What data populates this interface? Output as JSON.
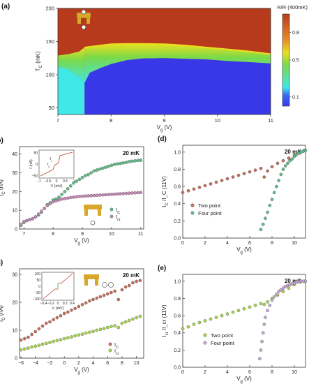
{
  "figure": {
    "panels": [
      {
        "id": "a",
        "label": "(a)",
        "type": "heatmap",
        "xlabel": "V_g (V)",
        "ylabel": "T_C (mK)",
        "x_ticks": [
          7,
          8,
          9,
          10,
          11
        ],
        "y_ticks": [
          50,
          100,
          150,
          200
        ],
        "xlim": [
          7,
          11
        ],
        "ylim": [
          40,
          200
        ],
        "colorbar": {
          "title": "R/R (400mK)",
          "ticks": [
            0.1,
            0.5,
            0.8
          ],
          "ticklabels": [
            "0.1",
            "0.5",
            "0.8"
          ],
          "range": [
            0,
            1
          ]
        },
        "colors": {
          "low": "#3838e8",
          "cyan": "#40e8e8",
          "mid": "#7ad94a",
          "yellow": "#e8e020",
          "high": "#b83a1c"
        },
        "boundary": {
          "x": [
            7.5,
            7.6,
            7.8,
            8.0,
            8.3,
            8.6,
            9.0,
            9.4,
            9.8,
            10.2,
            10.6,
            11.0
          ],
          "t_upper": [
            141,
            142,
            144,
            146,
            146.5,
            146.5,
            146,
            144,
            141,
            138,
            135,
            131
          ],
          "t_lower": [
            87,
            103,
            110,
            116,
            122,
            124.5,
            125,
            124,
            123,
            120.5,
            119,
            117
          ]
        },
        "left_region": {
          "x": [
            7.0,
            7.2,
            7.4,
            7.5
          ],
          "t_upper": [
            129,
            131,
            135,
            141
          ],
          "t_lower": [
            112,
            108,
            95,
            87
          ]
        }
      },
      {
        "id": "b",
        "label": "(b)",
        "type": "scatter",
        "annotation": "20 mK",
        "xlabel": "V_g (V)",
        "ylabel": "I_C (nA)",
        "x_ticks": [
          7,
          8,
          9,
          10,
          11
        ],
        "y_ticks": [
          0,
          10,
          20,
          30,
          40
        ],
        "xlim": [
          6.85,
          11.1
        ],
        "ylim": [
          0,
          44
        ],
        "series": [
          {
            "name": "I_C",
            "color": "#5fbf8a",
            "x": [
              6.9,
              7.0,
              7.1,
              7.2,
              7.3,
              7.4,
              7.5,
              7.6,
              7.7,
              7.8,
              7.9,
              8.0,
              8.1,
              8.2,
              8.3,
              8.4,
              8.5,
              8.6,
              8.7,
              8.8,
              8.9,
              9.0,
              9.1,
              9.2,
              9.3,
              9.4,
              9.5,
              9.6,
              9.7,
              9.8,
              9.9,
              10.0,
              10.1,
              10.2,
              10.3,
              10.4,
              10.5,
              10.6,
              10.7,
              10.8,
              10.9,
              11.0
            ],
            "y": [
              2,
              3.5,
              4.5,
              5,
              5.5,
              6.5,
              7.5,
              9,
              11,
              13,
              14,
              15.5,
              16,
              17,
              18.5,
              20,
              21.5,
              23,
              24.5,
              25.5,
              26.5,
              27.5,
              28.5,
              29,
              30,
              31,
              31.5,
              32,
              32.5,
              33,
              33.5,
              34,
              34.5,
              34.8,
              35,
              35.3,
              35.6,
              36,
              36.2,
              36.4,
              36.6,
              36.7
            ]
          },
          {
            "name": "I_cr",
            "color": "#c98ab8",
            "x": [
              6.9,
              7.0,
              7.1,
              7.2,
              7.3,
              7.4,
              7.5,
              7.6,
              7.7,
              7.8,
              7.9,
              8.0,
              8.1,
              8.2,
              8.3,
              8.4,
              8.5,
              8.6,
              8.7,
              8.8,
              8.9,
              9.0,
              9.1,
              9.2,
              9.3,
              9.4,
              9.5,
              9.6,
              9.7,
              9.8,
              9.9,
              10.0,
              10.1,
              10.2,
              10.3,
              10.4,
              10.5,
              10.6,
              10.7,
              10.8,
              10.9,
              11.0
            ],
            "y": [
              2.5,
              4,
              4.5,
              5,
              5.5,
              6.5,
              8,
              9.5,
              11,
              12.5,
              13.5,
              14.5,
              15,
              15.5,
              16,
              16.3,
              16.5,
              16.8,
              17,
              17.2,
              17.4,
              17.5,
              17.6,
              17.7,
              17.8,
              17.9,
              18,
              18.1,
              18.2,
              18.3,
              18.4,
              18.5,
              18.6,
              18.7,
              18.8,
              18.9,
              19,
              19.1,
              19.2,
              19.3,
              19.4,
              19.5
            ]
          }
        ],
        "legend_labels": [
          "I_C",
          "I_cr"
        ],
        "inset": {
          "xlabel": "V (mV)",
          "ylabel": "I (nA)",
          "x_ticks": [
            -1,
            -0.5,
            0,
            0.5,
            1
          ],
          "x_ticklabels": [
            "−1",
            "−0.5",
            "0",
            "0.5",
            "1"
          ],
          "y_ticks": [
            -50,
            0,
            50
          ],
          "y_ticklabels": [
            "−50",
            "0",
            "50"
          ],
          "xlim": [
            -1,
            1
          ],
          "ylim": [
            -60,
            60
          ],
          "marker_labels": [
            "I_r",
            "I_c"
          ]
        }
      },
      {
        "id": "c",
        "label": "(c)",
        "type": "scatter",
        "annotation": "20 mK",
        "xlabel": "V_g (V)",
        "ylabel": "I_C (nA)",
        "x_ticks": [
          -6,
          -4,
          -2,
          0,
          2,
          4,
          6,
          8,
          10
        ],
        "x_ticklabels": [
          "−6",
          "−4",
          "−2",
          "0",
          "2",
          "4",
          "6",
          "8",
          "10"
        ],
        "y_ticks": [
          0,
          10,
          20,
          30
        ],
        "xlim": [
          -6.2,
          11
        ],
        "ylim": [
          0,
          32
        ],
        "series": [
          {
            "name": "I_C",
            "color": "#c96f5c",
            "x": [
              -6,
              -5.5,
              -5,
              -4.5,
              -4,
              -3.5,
              -3,
              -2.5,
              -2,
              -1.5,
              -1,
              -0.5,
              0,
              0.5,
              1,
              1.5,
              2,
              2.5,
              3,
              3.5,
              4,
              4.5,
              5,
              5.5,
              6,
              6.5,
              7,
              7.5,
              8,
              8.5,
              9,
              9.5,
              10,
              10.5
            ],
            "y": [
              6.5,
              7,
              7.5,
              8.5,
              9.5,
              10.5,
              11.5,
              12.5,
              13,
              13.8,
              14.5,
              15.2,
              16,
              16.5,
              17.2,
              17.8,
              18.5,
              19.2,
              19.8,
              20.5,
              21,
              21.5,
              22,
              22.5,
              23,
              23.5,
              24,
              21,
              24.5,
              25.5,
              26,
              27,
              27.5,
              27.8
            ]
          },
          {
            "name": "I_cr",
            "color": "#a8d84a",
            "x": [
              -6,
              -5.5,
              -5,
              -4.5,
              -4,
              -3.5,
              -3,
              -2.5,
              -2,
              -1.5,
              -1,
              -0.5,
              0,
              0.5,
              1,
              1.5,
              2,
              2.5,
              3,
              3.5,
              4,
              4.5,
              5,
              5.5,
              6,
              6.5,
              7,
              7.5,
              8,
              8.5,
              9,
              9.5,
              10,
              10.5
            ],
            "y": [
              3,
              3.3,
              3.6,
              4,
              4.3,
              4.6,
              5,
              5.3,
              5.6,
              6,
              6.3,
              6.6,
              7,
              7.3,
              7.6,
              8,
              8.3,
              8.6,
              9,
              9.3,
              9.6,
              10,
              10.3,
              10.6,
              11,
              11.3,
              11.6,
              11,
              12.5,
              13,
              13.5,
              14,
              14.5,
              15
            ]
          }
        ],
        "legend_labels": [
          "I_C",
          "I_cr"
        ],
        "inset": {
          "xlabel": "V (mV)",
          "x_ticks": [
            -0.4,
            -0.2,
            0,
            0.2,
            0.4
          ],
          "x_ticklabels": [
            "−0.4",
            "−0.2",
            "0",
            "0.2",
            "0.4"
          ],
          "y_ticks": [
            -100,
            -50,
            0,
            50,
            100
          ],
          "y_ticklabels": [
            "−100",
            "−50",
            "0",
            "50",
            "100"
          ],
          "xlim": [
            -0.45,
            0.45
          ],
          "ylim": [
            -110,
            110
          ]
        }
      },
      {
        "id": "d",
        "label": "(d)",
        "type": "scatter",
        "annotation": "20 mK",
        "xlabel": "V_g (V)",
        "ylabel": "I_C /I_C (11V)",
        "x_ticks": [
          0,
          2,
          4,
          6,
          8,
          10
        ],
        "y_ticks": [
          0,
          0.2,
          0.4,
          0.6,
          0.8,
          1.0
        ],
        "y_ticklabels": [
          "0.0",
          "0.2",
          "0.4",
          "0.6",
          "0.8",
          "1.0"
        ],
        "xlim": [
          0,
          11
        ],
        "ylim": [
          0,
          1.08
        ],
        "series": [
          {
            "name": "Two point",
            "color": "#c96f5c",
            "x": [
              0,
              0.5,
              1,
              1.5,
              2,
              2.5,
              3,
              3.5,
              4,
              4.5,
              5,
              5.5,
              6,
              6.5,
              7,
              7.3,
              7.6,
              8,
              8.5,
              9,
              9.5,
              10,
              10.5,
              10.9
            ],
            "y": [
              0.53,
              0.55,
              0.57,
              0.59,
              0.61,
              0.63,
              0.65,
              0.67,
              0.69,
              0.71,
              0.73,
              0.75,
              0.77,
              0.79,
              0.81,
              0.71,
              0.78,
              0.83,
              0.87,
              0.9,
              0.93,
              0.96,
              0.99,
              1.02
            ]
          },
          {
            "name": "Four point",
            "color": "#5fbf8a",
            "x": [
              7.0,
              7.2,
              7.4,
              7.6,
              7.8,
              8.0,
              8.2,
              8.4,
              8.6,
              8.8,
              9.0,
              9.2,
              9.4,
              9.6,
              9.8,
              10.0,
              10.2,
              10.4,
              10.6,
              10.8,
              11.0
            ],
            "y": [
              0.1,
              0.16,
              0.23,
              0.3,
              0.38,
              0.45,
              0.53,
              0.6,
              0.67,
              0.74,
              0.8,
              0.84,
              0.87,
              0.9,
              0.92,
              0.95,
              0.97,
              0.99,
              1.0,
              1.01,
              1.02
            ]
          }
        ]
      },
      {
        "id": "e",
        "label": "(e)",
        "type": "scatter",
        "annotation": "20 mK",
        "xlabel": "V_g (V)",
        "ylabel": "I_cr /I_cr (11V)",
        "x_ticks": [
          0,
          2,
          4,
          6,
          8,
          10
        ],
        "y_ticks": [
          0,
          0.2,
          0.4,
          0.6,
          0.8,
          1.0
        ],
        "y_ticklabels": [
          "0.0",
          "0.2",
          "0.4",
          "0.6",
          "0.8",
          "1.0"
        ],
        "xlim": [
          0,
          11
        ],
        "ylim": [
          0,
          1.08
        ],
        "series": [
          {
            "name": "Two point",
            "color": "#a8d84a",
            "x": [
              0,
              0.5,
              1,
              1.5,
              2,
              2.5,
              3,
              3.5,
              4,
              4.5,
              5,
              5.5,
              6,
              6.5,
              7,
              7.3,
              7.6,
              8,
              8.5,
              9,
              9.5,
              10,
              10.5,
              10.9
            ],
            "y": [
              0.45,
              0.47,
              0.5,
              0.52,
              0.54,
              0.56,
              0.58,
              0.6,
              0.62,
              0.64,
              0.66,
              0.68,
              0.7,
              0.72,
              0.74,
              0.73,
              0.76,
              0.8,
              0.84,
              0.88,
              0.92,
              0.96,
              0.99,
              1.0
            ]
          },
          {
            "name": "Four point",
            "color": "#c9a8d8",
            "x": [
              6.9,
              7.0,
              7.1,
              7.2,
              7.3,
              7.4,
              7.6,
              7.8,
              8.0,
              8.2,
              8.4,
              8.6,
              8.8,
              9.0,
              9.2,
              9.4,
              9.6,
              9.8,
              10.0,
              10.2,
              10.4,
              10.6,
              10.8,
              11.0
            ],
            "y": [
              0.1,
              0.2,
              0.3,
              0.4,
              0.5,
              0.58,
              0.66,
              0.72,
              0.78,
              0.82,
              0.85,
              0.88,
              0.9,
              0.92,
              0.94,
              0.95,
              0.96,
              0.97,
              0.98,
              0.99,
              0.995,
              1.0,
              1.0,
              1.0
            ]
          }
        ]
      }
    ]
  }
}
